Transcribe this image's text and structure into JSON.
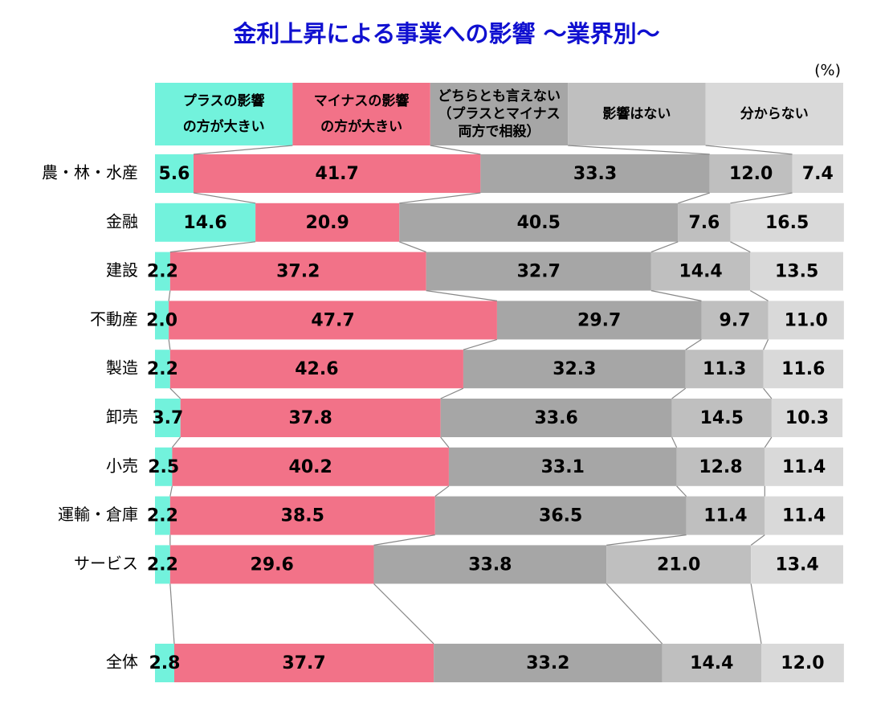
{
  "chart_data": {
    "type": "stacked-bar-horizontal",
    "title": "金利上昇による事業への影響 ～業界別～",
    "unit": "(%)",
    "categories": [
      "農・林・水産",
      "金融",
      "建設",
      "不動産",
      "製造",
      "卸売",
      "小売",
      "運輸・倉庫",
      "サービス",
      "全体"
    ],
    "xlim": [
      0,
      100
    ],
    "series": [
      {
        "name": "プラスの影響\nの方が大きい",
        "color": "#72f2dc",
        "values": [
          5.6,
          14.6,
          2.2,
          2.0,
          2.2,
          3.7,
          2.5,
          2.2,
          2.2,
          2.8
        ],
        "value_labels": [
          "5.6",
          "14.6",
          "2.2",
          "2.0",
          "2.2",
          "3.7",
          "2.5",
          "2.2",
          "2.2",
          "2.8"
        ]
      },
      {
        "name": "マイナスの影響\nの方が大きい",
        "color": "#f27288",
        "values": [
          41.7,
          20.9,
          37.2,
          47.7,
          42.6,
          37.8,
          40.2,
          38.5,
          29.6,
          37.7
        ],
        "value_labels": [
          "41.7",
          "20.9",
          "37.2",
          "47.7",
          "42.6",
          "37.8",
          "40.2",
          "38.5",
          "29.6",
          "37.7"
        ]
      },
      {
        "name": "どちらとも言えない\n（プラスとマイナス\n両方で相殺）",
        "color": "#a6a6a6",
        "values": [
          33.3,
          40.5,
          32.7,
          29.7,
          32.3,
          33.6,
          33.1,
          36.5,
          33.8,
          33.2
        ],
        "value_labels": [
          "33.3",
          "40.5",
          "32.7",
          "29.7",
          "32.3",
          "33.6",
          "33.1",
          "36.5",
          "33.8",
          "33.2"
        ]
      },
      {
        "name": "影響はない",
        "color": "#bfbfbf",
        "values": [
          12.0,
          7.6,
          14.4,
          9.7,
          11.3,
          14.5,
          12.8,
          11.4,
          21.0,
          14.4
        ],
        "value_labels": [
          "12.0",
          "7.6",
          "14.4",
          "9.7",
          "11.3",
          "14.5",
          "12.8",
          "11.4",
          "21.0",
          "14.4"
        ]
      },
      {
        "name": "分からない",
        "color": "#d9d9d9",
        "values": [
          7.4,
          16.5,
          13.5,
          11.0,
          11.6,
          10.3,
          11.4,
          11.4,
          13.4,
          12.0
        ],
        "value_labels": [
          "7.4",
          "16.5",
          "13.5",
          "11.0",
          "11.6",
          "10.3",
          "11.4",
          "11.4",
          "13.4",
          "12.0"
        ]
      }
    ]
  }
}
